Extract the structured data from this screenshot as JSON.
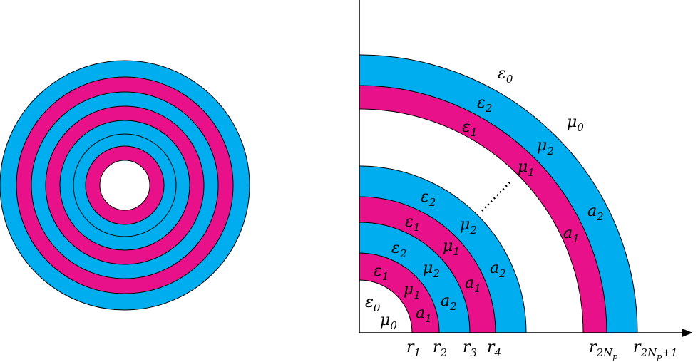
{
  "colors": {
    "blue": "#00ADEF",
    "magenta": "#E8118A",
    "line": "#000000",
    "background": "#FFFFFF"
  },
  "left_figure": {
    "ring_colors": [
      "magenta",
      "blue",
      "magenta",
      "blue",
      "magenta",
      "blue"
    ]
  },
  "right_figure": {
    "inner_labels": [
      {
        "base": "ε",
        "sub": "0"
      },
      {
        "base": "μ",
        "sub": "0"
      }
    ],
    "layer_labels": [
      {
        "eps": {
          "base": "ε",
          "sub": "1"
        },
        "mu": {
          "base": "μ",
          "sub": "1"
        },
        "a": {
          "base": "a",
          "sub": "1"
        }
      },
      {
        "eps": {
          "base": "ε",
          "sub": "2"
        },
        "mu": {
          "base": "μ",
          "sub": "2"
        },
        "a": {
          "base": "a",
          "sub": "2"
        }
      },
      {
        "eps": {
          "base": "ε",
          "sub": "1"
        },
        "mu": {
          "base": "μ",
          "sub": "1"
        },
        "a": {
          "base": "a",
          "sub": "1"
        }
      },
      {
        "eps": {
          "base": "ε",
          "sub": "2"
        },
        "mu": {
          "base": "μ",
          "sub": "2"
        },
        "a": {
          "base": "a",
          "sub": "2"
        }
      },
      {
        "eps": {
          "base": "ε",
          "sub": "1"
        },
        "mu": {
          "base": "μ",
          "sub": "1"
        },
        "a": {
          "base": "a",
          "sub": "1"
        }
      },
      {
        "eps": {
          "base": "ε",
          "sub": "2"
        },
        "mu": {
          "base": "μ",
          "sub": "2"
        },
        "a": {
          "base": "a",
          "sub": "2"
        }
      }
    ],
    "outer_labels": [
      {
        "base": "ε",
        "sub": "0"
      },
      {
        "base": "μ",
        "sub": "0"
      }
    ],
    "radius_labels": [
      {
        "base": "r",
        "sub": "1",
        "subsub": ""
      },
      {
        "base": "r",
        "sub": "2",
        "subsub": ""
      },
      {
        "base": "r",
        "sub": "3",
        "subsub": ""
      },
      {
        "base": "r",
        "sub": "4",
        "subsub": ""
      },
      {
        "base": "r",
        "sub": "2N",
        "subsub": "p"
      },
      {
        "base": "r",
        "sub": "2N",
        "subsub": "p",
        "tail": "+1"
      }
    ]
  }
}
